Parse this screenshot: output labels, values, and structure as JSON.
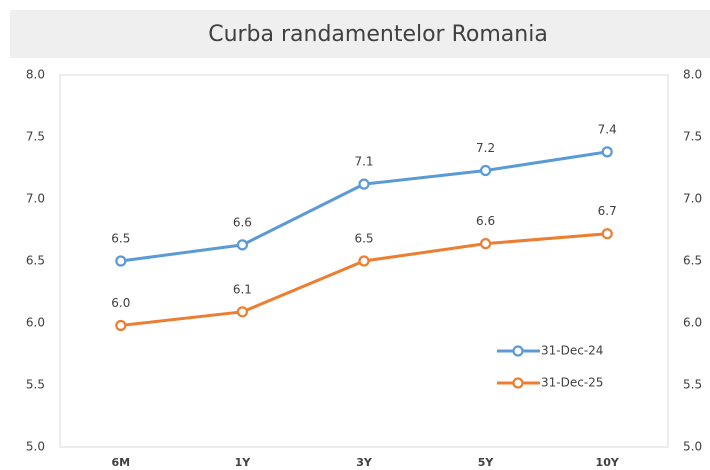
{
  "chart_data": {
    "type": "line",
    "title": "Curba randamentelor Romania",
    "categories": [
      "6M",
      "1Y",
      "3Y",
      "5Y",
      "10Y"
    ],
    "series": [
      {
        "name": "31-Dec-24",
        "color": "#5b9bd5",
        "values": [
          6.5,
          6.63,
          7.12,
          7.23,
          7.38
        ],
        "value_labels": [
          "6.5",
          "6.6",
          "7.1",
          "7.2",
          "7.4"
        ]
      },
      {
        "name": "31-Dec-25",
        "color": "#ed7d31",
        "values": [
          5.98,
          6.09,
          6.5,
          6.64,
          6.72
        ],
        "value_labels": [
          "6.0",
          "6.1",
          "6.5",
          "6.6",
          "6.7"
        ]
      }
    ],
    "ylim": [
      5,
      8
    ],
    "yticks": [
      {
        "value": 5,
        "label": "5.0"
      },
      5.5,
      {
        "value": 6,
        "label": "6.0"
      },
      6.5,
      {
        "value": 7,
        "label": "7.0"
      },
      7.5,
      {
        "value": 8,
        "label": "8.0"
      }
    ],
    "y2lim": [
      5,
      8
    ],
    "y2ticks": [
      {
        "value": 5,
        "label": "5.0"
      },
      5.5,
      {
        "value": 6,
        "label": "6.0"
      },
      6.5,
      {
        "value": 7,
        "label": "7.0"
      },
      7.5,
      {
        "value": 8,
        "label": "8.0"
      }
    ],
    "grid": false,
    "legend": "bottom-right"
  }
}
